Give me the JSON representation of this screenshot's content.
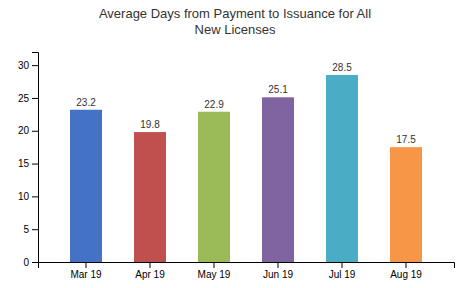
{
  "chart_data": {
    "type": "bar",
    "title": "Average Days from Payment to Issuance for All\nNew Licenses",
    "categories": [
      "Mar 19",
      "Apr 19",
      "May 19",
      "Jun 19",
      "Jul 19",
      "Aug 19"
    ],
    "values": [
      23.2,
      19.8,
      22.9,
      25.1,
      28.5,
      17.5
    ],
    "colors": [
      "#4472C4",
      "#C0504D",
      "#9BBB59",
      "#8064A2",
      "#4BACC6",
      "#F79646"
    ],
    "ylim": [
      0,
      32
    ],
    "yticks": [
      0,
      5,
      10,
      15,
      20,
      25,
      30
    ],
    "grid": false,
    "data_labels": true
  }
}
